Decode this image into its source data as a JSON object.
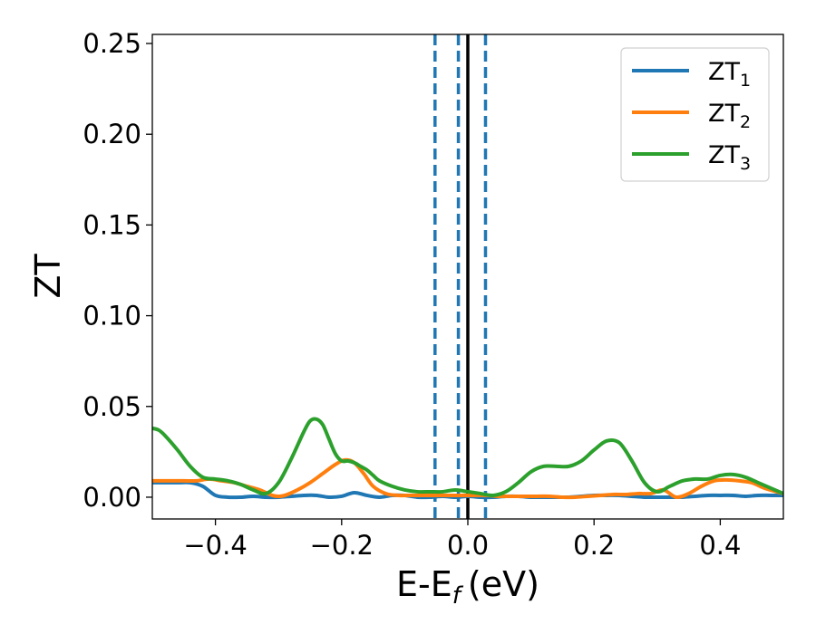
{
  "chart_data": {
    "type": "line",
    "xlabel": "E-E",
    "xlabel_sub": "f",
    "xlabel_unit": "(eV)",
    "ylabel": "ZT",
    "xlim": [
      -0.5,
      0.5
    ],
    "ylim": [
      -0.012,
      0.255
    ],
    "xticks": [
      -0.4,
      -0.2,
      0.0,
      0.2,
      0.4
    ],
    "xtick_labels": [
      "−0.4",
      "−0.2",
      "0.0",
      "0.2",
      "0.4"
    ],
    "yticks": [
      0.0,
      0.05,
      0.1,
      0.15,
      0.2,
      0.25
    ],
    "ytick_labels": [
      "0.00",
      "0.05",
      "0.10",
      "0.15",
      "0.20",
      "0.25"
    ],
    "grid": false,
    "legend_position": "top-right",
    "vertical_lines": [
      {
        "x": -0.052,
        "style": "dashed",
        "color": "#1f77b4"
      },
      {
        "x": -0.015,
        "style": "dashed",
        "color": "#1f77b4"
      },
      {
        "x": 0.028,
        "style": "dashed",
        "color": "#1f77b4"
      },
      {
        "x": 0.0,
        "style": "solid",
        "color": "#000000"
      }
    ],
    "series": [
      {
        "name": "ZT",
        "name_sub": "1",
        "color": "#1f77b4",
        "x": [
          -0.5,
          -0.46,
          -0.44,
          -0.42,
          -0.4,
          -0.38,
          -0.36,
          -0.34,
          -0.32,
          -0.3,
          -0.28,
          -0.26,
          -0.24,
          -0.22,
          -0.2,
          -0.18,
          -0.16,
          -0.14,
          -0.12,
          -0.1,
          -0.08,
          -0.06,
          -0.04,
          -0.02,
          0.0,
          0.02,
          0.04,
          0.06,
          0.08,
          0.1,
          0.12,
          0.14,
          0.16,
          0.18,
          0.2,
          0.22,
          0.24,
          0.26,
          0.28,
          0.3,
          0.32,
          0.34,
          0.36,
          0.38,
          0.4,
          0.42,
          0.44,
          0.46,
          0.48,
          0.5
        ],
        "y": [
          0.008,
          0.008,
          0.008,
          0.006,
          0.001,
          0.0,
          0.0,
          0.0005,
          0.0,
          0.0,
          0.0005,
          0.001,
          0.001,
          0.0,
          0.0005,
          0.0025,
          0.001,
          0.0,
          0.001,
          0.001,
          0.0,
          0.0,
          0.0005,
          0.0,
          0.0005,
          0.0,
          0.0,
          0.0005,
          0.0005,
          0.0,
          0.0,
          0.0,
          0.0,
          0.0005,
          0.001,
          0.001,
          0.001,
          0.0005,
          0.0,
          0.0,
          0.0,
          0.0,
          0.0005,
          0.001,
          0.001,
          0.001,
          0.0005,
          0.001,
          0.001,
          0.001
        ]
      },
      {
        "name": "ZT",
        "name_sub": "2",
        "color": "#ff7f0e",
        "x": [
          -0.5,
          -0.47,
          -0.45,
          -0.43,
          -0.41,
          -0.39,
          -0.37,
          -0.35,
          -0.33,
          -0.31,
          -0.3,
          -0.29,
          -0.27,
          -0.25,
          -0.23,
          -0.21,
          -0.195,
          -0.18,
          -0.165,
          -0.15,
          -0.13,
          -0.11,
          -0.09,
          -0.07,
          -0.05,
          -0.03,
          -0.01,
          0.01,
          0.03,
          0.05,
          0.07,
          0.09,
          0.11,
          0.13,
          0.15,
          0.17,
          0.19,
          0.21,
          0.23,
          0.25,
          0.27,
          0.29,
          0.31,
          0.33,
          0.35,
          0.37,
          0.39,
          0.41,
          0.43,
          0.45,
          0.47,
          0.5
        ],
        "y": [
          0.009,
          0.009,
          0.009,
          0.009,
          0.01,
          0.009,
          0.008,
          0.006,
          0.004,
          0.001,
          0.0005,
          0.001,
          0.004,
          0.008,
          0.013,
          0.018,
          0.0205,
          0.019,
          0.013,
          0.006,
          0.002,
          0.001,
          0.001,
          0.001,
          0.001,
          0.001,
          0.001,
          0.001,
          0.001,
          0.0005,
          0.0005,
          0.0005,
          0.0005,
          0.0005,
          0.0,
          0.0,
          0.0005,
          0.001,
          0.0015,
          0.0015,
          0.002,
          0.002,
          0.004,
          0.0,
          0.002,
          0.006,
          0.009,
          0.0095,
          0.009,
          0.008,
          0.005,
          0.002
        ]
      },
      {
        "name": "ZT",
        "name_sub": "3",
        "color": "#2ca02c",
        "x": [
          -0.5,
          -0.49,
          -0.48,
          -0.46,
          -0.44,
          -0.42,
          -0.4,
          -0.38,
          -0.36,
          -0.34,
          -0.32,
          -0.3,
          -0.28,
          -0.26,
          -0.25,
          -0.24,
          -0.23,
          -0.22,
          -0.21,
          -0.2,
          -0.19,
          -0.18,
          -0.17,
          -0.16,
          -0.15,
          -0.14,
          -0.12,
          -0.1,
          -0.08,
          -0.06,
          -0.04,
          -0.02,
          0.0,
          0.02,
          0.04,
          0.06,
          0.08,
          0.1,
          0.12,
          0.14,
          0.16,
          0.18,
          0.2,
          0.22,
          0.24,
          0.26,
          0.28,
          0.3,
          0.32,
          0.34,
          0.36,
          0.38,
          0.4,
          0.42,
          0.44,
          0.46,
          0.48,
          0.5
        ],
        "y": [
          0.038,
          0.037,
          0.034,
          0.026,
          0.017,
          0.011,
          0.01,
          0.009,
          0.007,
          0.004,
          0.002,
          0.008,
          0.021,
          0.036,
          0.042,
          0.043,
          0.04,
          0.032,
          0.024,
          0.02,
          0.02,
          0.019,
          0.017,
          0.015,
          0.012,
          0.009,
          0.006,
          0.004,
          0.003,
          0.003,
          0.003,
          0.004,
          0.003,
          0.002,
          0.001,
          0.003,
          0.008,
          0.014,
          0.017,
          0.017,
          0.017,
          0.02,
          0.026,
          0.031,
          0.03,
          0.02,
          0.008,
          0.003,
          0.006,
          0.009,
          0.01,
          0.01,
          0.012,
          0.0125,
          0.011,
          0.008,
          0.005,
          0.002
        ]
      }
    ]
  }
}
